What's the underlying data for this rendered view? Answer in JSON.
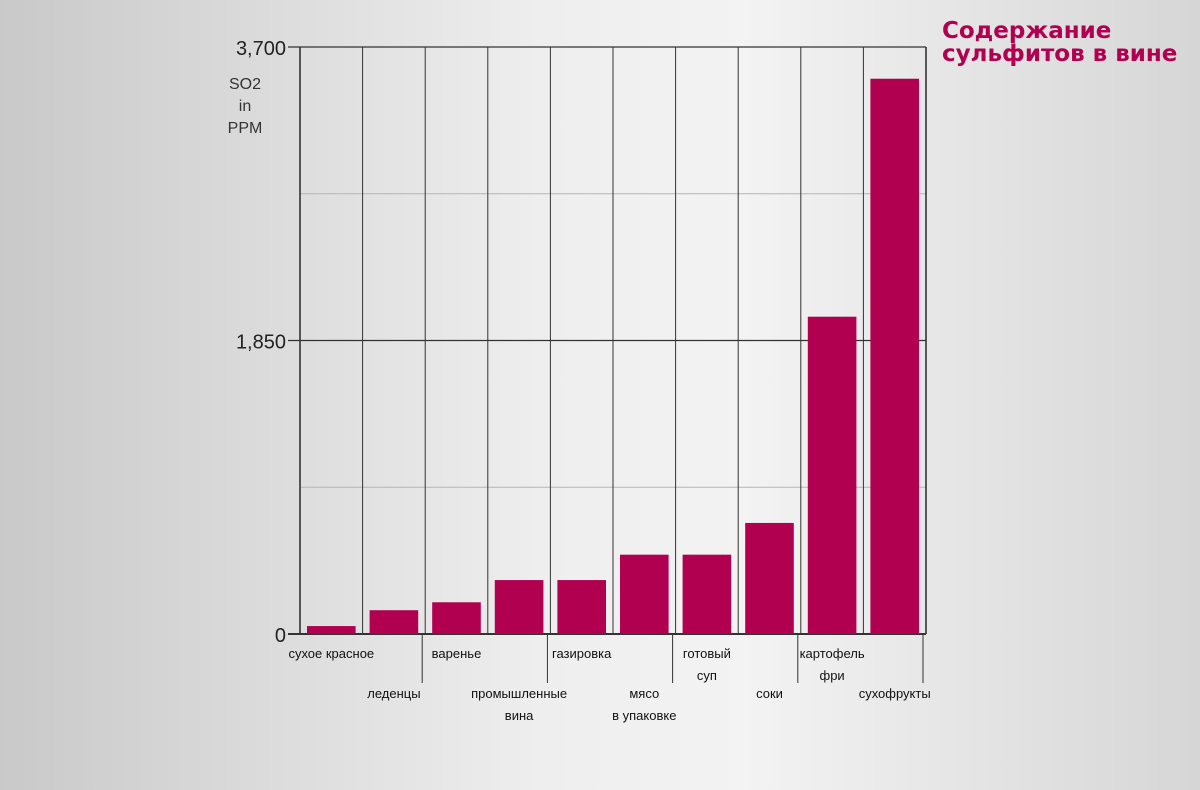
{
  "title_lines": [
    "Содержание",
    "сульфитов в вине"
  ],
  "ylabel_lines": [
    "SO2",
    "in",
    "PPM"
  ],
  "colors": {
    "bar": "#b0004f",
    "axis": "#333333",
    "grid": "#b5b5b5",
    "title": "#b0004f"
  },
  "chart_data": {
    "type": "bar",
    "title": "Содержание сульфитов в вине",
    "ylabel": "SO2 in PPM",
    "ylim": [
      0,
      3700
    ],
    "yticks": [
      "0",
      "1,850",
      "3,700"
    ],
    "grid": true,
    "categories": [
      [
        "сухое красное"
      ],
      [
        "леденцы"
      ],
      [
        "варенье"
      ],
      [
        "промышленные",
        "вина"
      ],
      [
        "газировка"
      ],
      [
        "мясо",
        "в упаковке"
      ],
      [
        "готовый",
        "суп"
      ],
      [
        "соки"
      ],
      [
        "картофель",
        "фри"
      ],
      [
        "сухофрукты"
      ]
    ],
    "values": [
      50,
      150,
      200,
      340,
      340,
      500,
      500,
      700,
      2000,
      3500
    ]
  }
}
